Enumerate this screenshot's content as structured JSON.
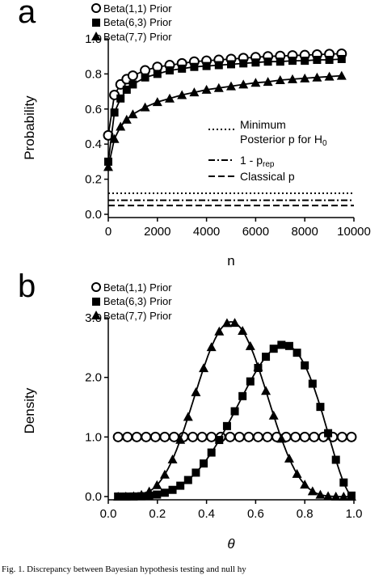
{
  "panels": {
    "a_letter": "a",
    "b_letter": "b"
  },
  "caption": "Fig. 1. Discrepancy between Bayesian hypothesis testing and null hy",
  "colors": {
    "ink": "#000000",
    "background": "#ffffff",
    "open_marker_fill": "#ffffff"
  },
  "chart_data": [
    {
      "type": "line",
      "xlabel": "n",
      "ylabel": "Probability",
      "xlim": [
        0,
        10000
      ],
      "ylim": [
        0.0,
        1.0
      ],
      "xticks": [
        "0",
        "2000",
        "4000",
        "6000",
        "8000",
        "10000"
      ],
      "yticks": [
        "0.0",
        "0.2",
        "0.4",
        "0.6",
        "0.8",
        "1.0"
      ],
      "grid": false,
      "legend_position": "top-left",
      "series": [
        {
          "name": "Beta(1,1) Prior",
          "marker": "open-circle",
          "x": [
            0,
            250,
            500,
            750,
            1000,
            1500,
            2000,
            2500,
            3000,
            3500,
            4000,
            4500,
            5000,
            5500,
            6000,
            6500,
            7000,
            7500,
            8000,
            8500,
            9000,
            9500
          ],
          "y": [
            0.45,
            0.68,
            0.74,
            0.77,
            0.79,
            0.82,
            0.84,
            0.85,
            0.86,
            0.87,
            0.875,
            0.88,
            0.885,
            0.89,
            0.895,
            0.9,
            0.902,
            0.905,
            0.907,
            0.91,
            0.913,
            0.915
          ]
        },
        {
          "name": "Beta(6,3) Prior",
          "marker": "filled-square",
          "x": [
            0,
            250,
            500,
            750,
            1000,
            1500,
            2000,
            2500,
            3000,
            3500,
            4000,
            4500,
            5000,
            5500,
            6000,
            6500,
            7000,
            7500,
            8000,
            8500,
            9000,
            9500
          ],
          "y": [
            0.3,
            0.58,
            0.66,
            0.71,
            0.74,
            0.78,
            0.8,
            0.82,
            0.83,
            0.84,
            0.845,
            0.85,
            0.855,
            0.86,
            0.865,
            0.87,
            0.87,
            0.875,
            0.875,
            0.88,
            0.88,
            0.885
          ]
        },
        {
          "name": "Beta(7,7) Prior",
          "marker": "filled-triangle",
          "x": [
            0,
            250,
            500,
            750,
            1000,
            1500,
            2000,
            2500,
            3000,
            3500,
            4000,
            4500,
            5000,
            5500,
            6000,
            6500,
            7000,
            7500,
            8000,
            8500,
            9000,
            9500
          ],
          "y": [
            0.27,
            0.43,
            0.5,
            0.54,
            0.57,
            0.61,
            0.64,
            0.66,
            0.68,
            0.695,
            0.71,
            0.72,
            0.73,
            0.74,
            0.75,
            0.755,
            0.765,
            0.77,
            0.775,
            0.78,
            0.785,
            0.79
          ]
        }
      ],
      "reference_lines": [
        {
          "label_lines": [
            "Minimum",
            "Posterior p for H0"
          ],
          "style": "dotted",
          "y": 0.12
        },
        {
          "label_lines": [
            "1 - p_rep"
          ],
          "style": "dash-dot",
          "y": 0.08
        },
        {
          "label_lines": [
            "Classical p"
          ],
          "style": "dashed",
          "y": 0.05
        }
      ]
    },
    {
      "type": "line",
      "xlabel": "θ",
      "ylabel": "Density",
      "xlim": [
        0.0,
        1.0
      ],
      "ylim": [
        0.0,
        3.0
      ],
      "xticks": [
        "0.0",
        "0.2",
        "0.4",
        "0.6",
        "0.8",
        "1.0"
      ],
      "yticks": [
        "0.0",
        "1.0",
        "2.0",
        "3.0"
      ],
      "grid": false,
      "legend_position": "top-left",
      "series": [
        {
          "name": "Beta(1,1) Prior",
          "marker": "open-circle",
          "a": 1,
          "b": 1,
          "n_points": 26
        },
        {
          "name": "Beta(6,3) Prior",
          "marker": "filled-square",
          "a": 6,
          "b": 3,
          "n_points": 31
        },
        {
          "name": "Beta(7,7) Prior",
          "marker": "filled-triangle",
          "a": 7,
          "b": 7,
          "n_points": 31
        }
      ]
    }
  ]
}
